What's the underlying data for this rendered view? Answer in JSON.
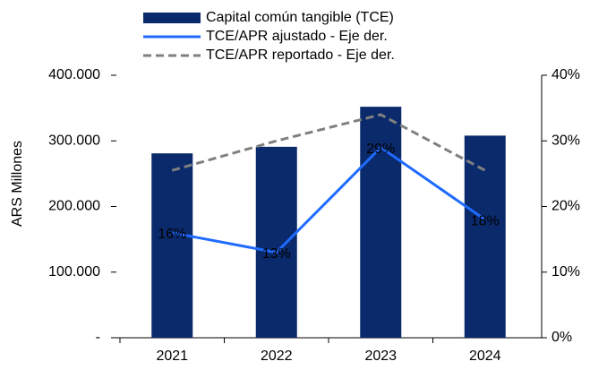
{
  "chart_data": {
    "type": "bar",
    "categories": [
      "2021",
      "2022",
      "2023",
      "2024"
    ],
    "ylabel": "ARS Millones",
    "ylim": [
      0,
      400000
    ],
    "yticks": [
      {
        "value": 0,
        "label": "-"
      },
      {
        "value": 100000,
        "label": "100.000"
      },
      {
        "value": 200000,
        "label": "200.000"
      },
      {
        "value": 300000,
        "label": "300.000"
      },
      {
        "value": 400000,
        "label": "400.000"
      }
    ],
    "y2lim": [
      0,
      40
    ],
    "y2ticks": [
      {
        "value": 0,
        "label": "0%"
      },
      {
        "value": 10,
        "label": "10%"
      },
      {
        "value": 20,
        "label": "20%"
      },
      {
        "value": 30,
        "label": "30%"
      },
      {
        "value": 40,
        "label": "40%"
      }
    ],
    "series": [
      {
        "name": "Capital común tangible (TCE)",
        "type": "bar",
        "color": "#0b2a6b",
        "values": [
          281000,
          291000,
          352000,
          308000
        ]
      },
      {
        "name": "TCE/APR ajustado - Eje der.",
        "type": "line",
        "axis": "y2",
        "color": "#1f6bff",
        "values": [
          16,
          13,
          29,
          18
        ],
        "value_labels": [
          "16%",
          "13%",
          "29%",
          "18%"
        ]
      },
      {
        "name": "TCE/APR reportado - Eje der.",
        "type": "line",
        "axis": "y2",
        "dashed": true,
        "color": "#808080",
        "values": [
          25.5,
          30,
          34,
          25.5
        ]
      }
    ]
  }
}
